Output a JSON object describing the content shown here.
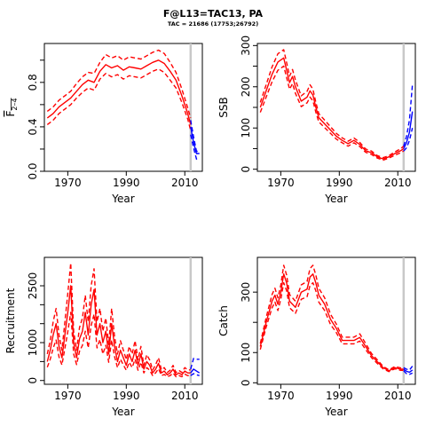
{
  "title": "F@L13=TAC13, PA",
  "subtitle": "TAC = 21686 (17753;26792)",
  "colors": {
    "historical": "#ff0000",
    "projection": "#0000ff",
    "ref_line": "#c8c8c8"
  },
  "chart_data": [
    {
      "type": "line",
      "ylabel_main": "F",
      "ylabel_sub": "2–4",
      "xlabel": "Year",
      "xlim": [
        1962,
        2016
      ],
      "ylim": [
        0,
        1.15
      ],
      "xticks": [
        1970,
        1990,
        2010
      ],
      "yticks": [
        0.0,
        0.4,
        0.8
      ],
      "yticks_minor": [
        0.2,
        0.6,
        1.0
      ],
      "vline": 2012,
      "x": [
        1963,
        1965,
        1967,
        1969,
        1971,
        1973,
        1975,
        1977,
        1979,
        1981,
        1983,
        1985,
        1987,
        1989,
        1991,
        1993,
        1995,
        1997,
        1999,
        2001,
        2003,
        2005,
        2007,
        2009,
        2011,
        2012
      ],
      "series": [
        {
          "role": "estimate",
          "values": [
            0.48,
            0.52,
            0.58,
            0.62,
            0.66,
            0.72,
            0.78,
            0.82,
            0.8,
            0.9,
            0.96,
            0.93,
            0.95,
            0.91,
            0.94,
            0.93,
            0.92,
            0.95,
            0.98,
            1.0,
            0.97,
            0.9,
            0.82,
            0.68,
            0.52,
            0.42
          ]
        },
        {
          "role": "upper",
          "values": [
            0.54,
            0.58,
            0.64,
            0.68,
            0.72,
            0.79,
            0.85,
            0.89,
            0.88,
            0.98,
            1.05,
            1.02,
            1.04,
            1.0,
            1.03,
            1.02,
            1.01,
            1.04,
            1.07,
            1.09,
            1.06,
            0.98,
            0.89,
            0.74,
            0.57,
            0.48
          ]
        },
        {
          "role": "lower",
          "values": [
            0.42,
            0.46,
            0.52,
            0.56,
            0.6,
            0.66,
            0.71,
            0.75,
            0.73,
            0.83,
            0.88,
            0.85,
            0.87,
            0.83,
            0.86,
            0.85,
            0.84,
            0.87,
            0.9,
            0.92,
            0.89,
            0.82,
            0.75,
            0.62,
            0.47,
            0.37
          ]
        }
      ],
      "projection": {
        "x": [
          2012,
          2013,
          2014,
          2015
        ],
        "values": [
          0.4,
          0.26,
          0.16,
          0.16
        ],
        "upper": [
          0.46,
          0.31,
          0.18,
          0.18
        ],
        "lower": [
          0.33,
          0.21,
          0.11,
          0.11
        ]
      }
    },
    {
      "type": "line",
      "ylabel_main": "SSB",
      "xlabel": "Year",
      "xlim": [
        1962,
        2016
      ],
      "ylim": [
        -5,
        305
      ],
      "xticks": [
        1970,
        1990,
        2010
      ],
      "yticks": [
        0,
        100,
        200,
        300
      ],
      "yticks_minor": [
        50,
        150,
        250
      ],
      "vline": 2012,
      "x": [
        1963,
        1965,
        1967,
        1969,
        1970,
        1971,
        1972,
        1973,
        1974,
        1975,
        1977,
        1979,
        1980,
        1981,
        1982,
        1983,
        1985,
        1987,
        1989,
        1991,
        1993,
        1995,
        1997,
        1999,
        2001,
        2003,
        2005,
        2007,
        2009,
        2011,
        2012
      ],
      "series": [
        {
          "role": "estimate",
          "values": [
            150,
            190,
            230,
            260,
            265,
            270,
            240,
            210,
            225,
            200,
            165,
            175,
            190,
            180,
            150,
            125,
            110,
            95,
            80,
            70,
            62,
            70,
            60,
            45,
            40,
            30,
            25,
            30,
            38,
            45,
            50
          ]
        },
        {
          "role": "upper",
          "values": [
            162,
            205,
            248,
            280,
            285,
            290,
            258,
            226,
            242,
            216,
            178,
            189,
            205,
            194,
            162,
            135,
            119,
            103,
            87,
            76,
            68,
            76,
            65,
            49,
            44,
            33,
            28,
            33,
            42,
            50,
            56
          ]
        },
        {
          "role": "lower",
          "values": [
            138,
            175,
            212,
            240,
            245,
            250,
            222,
            194,
            208,
            184,
            152,
            161,
            175,
            166,
            138,
            115,
            101,
            87,
            73,
            64,
            56,
            64,
            55,
            41,
            36,
            27,
            22,
            27,
            34,
            40,
            44
          ]
        }
      ],
      "projection": {
        "x": [
          2012,
          2013,
          2014,
          2015
        ],
        "values": [
          50,
          65,
          90,
          140
        ],
        "upper": [
          56,
          80,
          120,
          205
        ],
        "lower": [
          44,
          52,
          70,
          100
        ]
      }
    },
    {
      "type": "line",
      "ylabel_main": "Recruitment",
      "xlabel": "Year",
      "xlim": [
        1962,
        2016
      ],
      "ylim": [
        -100,
        3250
      ],
      "xticks": [
        1970,
        1990,
        2010
      ],
      "yticks": [
        0,
        1000,
        2500
      ],
      "yticks_minor": [
        500,
        1500,
        2000
      ],
      "vline": 2012,
      "x": [
        1963,
        1964,
        1965,
        1966,
        1967,
        1968,
        1969,
        1970,
        1971,
        1972,
        1973,
        1974,
        1975,
        1976,
        1977,
        1978,
        1979,
        1980,
        1981,
        1982,
        1983,
        1984,
        1985,
        1986,
        1987,
        1988,
        1989,
        1990,
        1991,
        1992,
        1993,
        1994,
        1995,
        1996,
        1997,
        1998,
        1999,
        2000,
        2001,
        2002,
        2003,
        2004,
        2005,
        2006,
        2007,
        2008,
        2009,
        2010,
        2011,
        2012
      ],
      "series": [
        {
          "role": "estimate",
          "values": [
            500,
            800,
            1200,
            1500,
            900,
            600,
            1200,
            1800,
            2500,
            1000,
            600,
            1100,
            1300,
            1800,
            1200,
            2000,
            2400,
            1200,
            1500,
            1000,
            1300,
            700,
            1500,
            900,
            500,
            800,
            600,
            400,
            700,
            500,
            800,
            400,
            700,
            300,
            500,
            400,
            200,
            300,
            450,
            200,
            250,
            150,
            200,
            300,
            150,
            200,
            150,
            250,
            200,
            200
          ]
        },
        {
          "role": "upper",
          "values": [
            700,
            1050,
            1550,
            1900,
            1200,
            800,
            1550,
            2300,
            3100,
            1300,
            800,
            1400,
            1650,
            2250,
            1550,
            2500,
            2950,
            1550,
            1900,
            1300,
            1650,
            950,
            1900,
            1150,
            700,
            1050,
            800,
            550,
            900,
            700,
            1050,
            550,
            900,
            400,
            680,
            540,
            280,
            410,
            600,
            280,
            340,
            210,
            270,
            400,
            210,
            270,
            210,
            340,
            280,
            280
          ]
        },
        {
          "role": "lower",
          "values": [
            350,
            560,
            850,
            1070,
            620,
            410,
            850,
            1290,
            1800,
            700,
            420,
            770,
            930,
            1300,
            860,
            1450,
            1750,
            860,
            1080,
            700,
            930,
            480,
            1070,
            630,
            340,
            560,
            410,
            270,
            480,
            340,
            560,
            270,
            480,
            200,
            340,
            270,
            130,
            200,
            310,
            130,
            160,
            100,
            130,
            200,
            100,
            130,
            100,
            170,
            130,
            130
          ]
        }
      ],
      "projection": {
        "x": [
          2012,
          2013,
          2014,
          2015
        ],
        "values": [
          200,
          300,
          250,
          200
        ],
        "upper": [
          300,
          580,
          560,
          560
        ],
        "lower": [
          130,
          180,
          150,
          130
        ]
      }
    },
    {
      "type": "line",
      "ylabel_main": "Catch",
      "xlabel": "Year",
      "xlim": [
        1962,
        2016
      ],
      "ylim": [
        -5,
        415
      ],
      "xticks": [
        1970,
        1990,
        2010
      ],
      "yticks": [
        0,
        100,
        300
      ],
      "yticks_minor": [
        200
      ],
      "vline": 2012,
      "x": [
        1963,
        1965,
        1967,
        1968,
        1969,
        1970,
        1971,
        1972,
        1973,
        1975,
        1977,
        1979,
        1980,
        1981,
        1982,
        1983,
        1985,
        1987,
        1989,
        1991,
        1993,
        1995,
        1997,
        1999,
        2001,
        2003,
        2005,
        2007,
        2009,
        2011,
        2012
      ],
      "series": [
        {
          "role": "estimate",
          "values": [
            120,
            200,
            270,
            290,
            260,
            300,
            360,
            330,
            270,
            250,
            300,
            310,
            350,
            360,
            330,
            290,
            260,
            210,
            180,
            140,
            140,
            140,
            150,
            120,
            90,
            70,
            50,
            40,
            50,
            45,
            45
          ]
        },
        {
          "role": "upper",
          "values": [
            130,
            216,
            292,
            313,
            281,
            324,
            389,
            356,
            292,
            270,
            324,
            335,
            378,
            389,
            356,
            313,
            281,
            227,
            194,
            151,
            151,
            151,
            162,
            130,
            97,
            76,
            54,
            43,
            54,
            49,
            49
          ]
        },
        {
          "role": "lower",
          "values": [
            110,
            184,
            248,
            267,
            239,
            276,
            331,
            304,
            248,
            230,
            276,
            285,
            322,
            331,
            304,
            267,
            239,
            193,
            166,
            129,
            129,
            129,
            138,
            110,
            83,
            64,
            46,
            37,
            46,
            41,
            41
          ]
        }
      ],
      "projection": {
        "x": [
          2012,
          2013,
          2014,
          2015
        ],
        "values": [
          45,
          38,
          35,
          42
        ],
        "upper": [
          50,
          45,
          42,
          55
        ],
        "lower": [
          40,
          30,
          28,
          32
        ]
      }
    }
  ]
}
